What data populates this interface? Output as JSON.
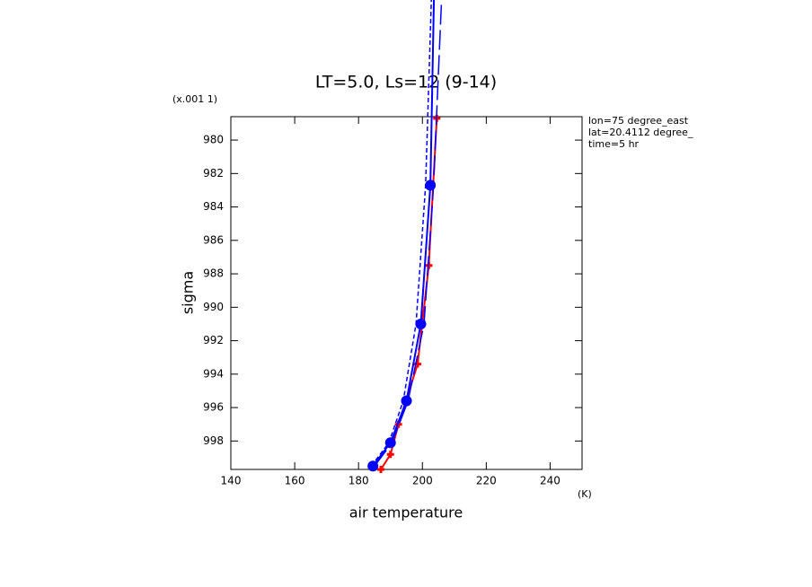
{
  "chart_data": {
    "type": "line",
    "title": "LT=5.0, Ls=12 (9-14)",
    "x_label": "air temperature",
    "x_unit": "(K)",
    "y_label": "sigma",
    "y_unit": "(x.001 1)",
    "annotations": [
      "lon=75 degree_east",
      "lat=20.4112 degree_",
      "time=5 hr"
    ],
    "xlim": [
      140,
      250
    ],
    "xticks": [
      140,
      160,
      180,
      200,
      220,
      240
    ],
    "ylim": [
      978.6,
      999.7
    ],
    "yticks": [
      980,
      982,
      984,
      986,
      988,
      990,
      992,
      994,
      996,
      998
    ],
    "y_inverted": true,
    "series": [
      {
        "color": "#ff0000",
        "style": "solid",
        "marker": "plus",
        "x": [
          187,
          190,
          192.5,
          198.5,
          202,
          204.5
        ],
        "values": [
          999.7,
          998.8,
          997,
          993.4,
          987.5,
          978.7
        ]
      },
      {
        "color": "#0000ff",
        "style": "solid",
        "marker": "circle",
        "x": [
          184.5,
          190,
          195,
          199.5,
          202.5,
          203.6
        ],
        "values": [
          999.5,
          998.1,
          995.6,
          991,
          982.7,
          971.6
        ]
      },
      {
        "color": "#0000ff",
        "style": "longdash",
        "marker": "none",
        "x": [
          185,
          190.5,
          195.5,
          200.5,
          203.5,
          206
        ],
        "values": [
          999.5,
          998.1,
          995.6,
          991,
          982.7,
          971.6
        ]
      },
      {
        "color": "#0000ff",
        "style": "shortdash",
        "marker": "none",
        "x": [
          184,
          189.5,
          194,
          198,
          201,
          202.8
        ],
        "values": [
          999.5,
          998.1,
          995.6,
          991,
          982.7,
          971.6
        ]
      }
    ]
  }
}
